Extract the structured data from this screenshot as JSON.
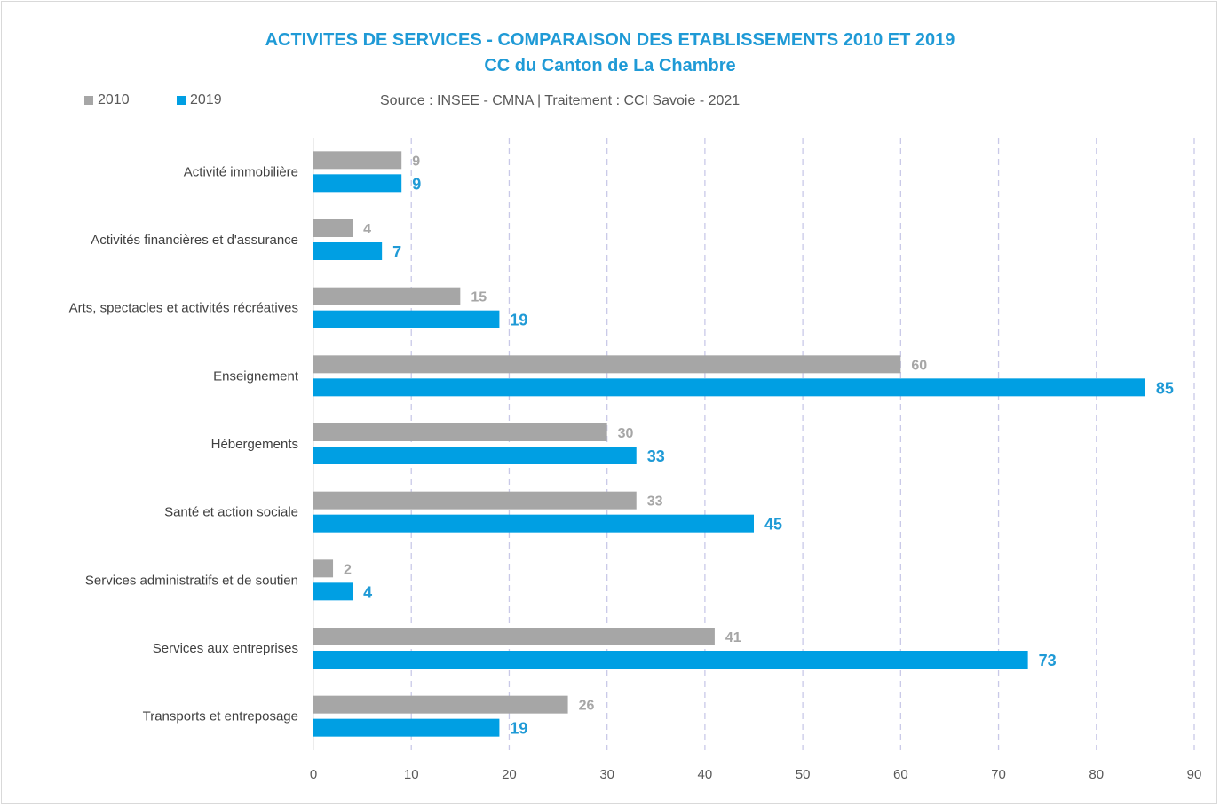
{
  "chart_data": {
    "type": "bar",
    "orientation": "horizontal",
    "title": "ACTIVITES DE SERVICES - COMPARAISON DES ETABLISSEMENTS 2010 ET 2019",
    "subtitle": "CC du Canton de La Chambre",
    "source": "Source : INSEE - CMNA  |  Traitement : CCI Savoie - 2021",
    "categories": [
      "Activité immobilière",
      "Activités financières et d'assurance",
      "Arts, spectacles et activités récréatives",
      "Enseignement",
      "Hébergements",
      "Santé et action sociale",
      "Services administratifs et de soutien",
      "Services aux entreprises",
      "Transports et entreposage"
    ],
    "series": [
      {
        "name": "2010",
        "color": "#a6a6a6",
        "values": [
          9,
          4,
          15,
          60,
          30,
          33,
          2,
          41,
          26
        ]
      },
      {
        "name": "2019",
        "color": "#009fe3",
        "values": [
          9,
          7,
          19,
          85,
          33,
          45,
          4,
          73,
          19
        ]
      }
    ],
    "xlim": [
      0,
      90
    ],
    "xticks": [
      0,
      10,
      20,
      30,
      40,
      50,
      60,
      70,
      80,
      90
    ],
    "grid": true,
    "legend": "top-left"
  }
}
